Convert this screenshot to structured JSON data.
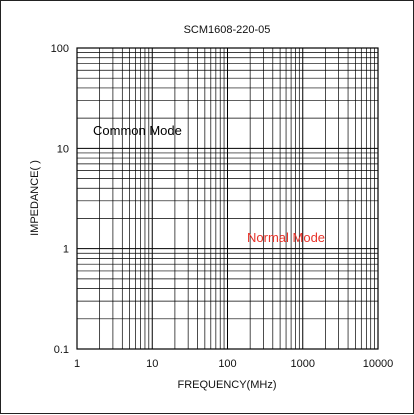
{
  "chart_data": {
    "type": "line",
    "title": "SCM1608-220-05",
    "xlabel": "FREQUENCY(MHz)",
    "ylabel": "IMPEDANCE(  )",
    "x_scale": "log",
    "y_scale": "log",
    "xlim": [
      1,
      10000
    ],
    "ylim": [
      0.1,
      100
    ],
    "x_ticks": [
      "1",
      "10",
      "100",
      "1000",
      "10000"
    ],
    "y_ticks": [
      "0.1",
      "1",
      "10",
      "100"
    ],
    "grid": true,
    "annotations": [
      {
        "text": "Common Mode",
        "color": "#000000"
      },
      {
        "text": "Normal Mode",
        "color": "#e8332a"
      }
    ],
    "series": []
  },
  "colors": {
    "grid": "#000000",
    "normal_mode": "#e8332a"
  }
}
